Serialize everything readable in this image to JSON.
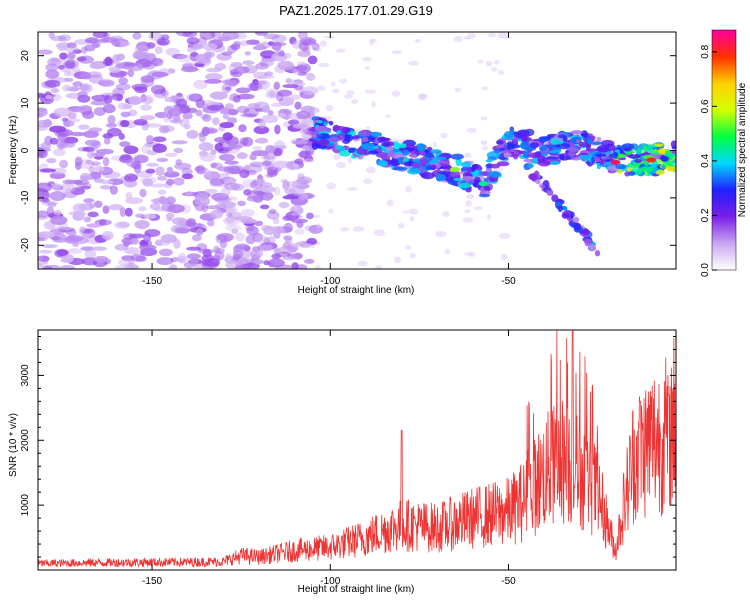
{
  "title": "PAZ1.2025.177.01.29.G19",
  "chart_data": [
    {
      "type": "heatmap",
      "xlabel": "Height of straight line (km)",
      "ylabel": "Frequency (Hz)",
      "xlim": [
        -182,
        -3
      ],
      "ylim": [
        -25,
        25
      ],
      "x_ticks": [
        -150,
        -100,
        -50
      ],
      "y_ticks": [
        -20,
        -10,
        0,
        10,
        20
      ],
      "colorbar": {
        "label": "Normalized spectral amplitude",
        "range": [
          0.0,
          0.88
        ],
        "ticks": [
          0.0,
          0.2,
          0.4,
          0.6,
          0.8
        ],
        "colors": [
          "#ffffff",
          "#c9a6f2",
          "#7a1ee6",
          "#2020ff",
          "#00d8ff",
          "#00ff40",
          "#d6ff00",
          "#ffd000",
          "#ff3000",
          "#ff00a0"
        ]
      },
      "ridge": {
        "description_points_x": [
          -105,
          -95,
          -85,
          -75,
          -65,
          -57,
          -50,
          -40,
          -30,
          -20,
          -10,
          -3
        ],
        "description_points_y": [
          4,
          2,
          0,
          -2,
          -4,
          -7,
          2,
          0,
          1,
          -2,
          -2,
          -1
        ],
        "peak_amplitude": 0.85
      }
    },
    {
      "type": "line",
      "xlabel": "Height of straight line (km)",
      "ylabel": "SNR (10 * v/v)",
      "xlim": [
        -182,
        -3
      ],
      "ylim": [
        0,
        3700
      ],
      "x_ticks": [
        -150,
        -100,
        -50
      ],
      "y_ticks": [
        1000,
        2000,
        3000
      ],
      "color": "#ee3333",
      "envelope_x": [
        -182,
        -170,
        -160,
        -150,
        -140,
        -130,
        -125,
        -120,
        -110,
        -100,
        -90,
        -80,
        -70,
        -60,
        -50,
        -45,
        -40,
        -35,
        -30,
        -25,
        -20,
        -18,
        -15,
        -10,
        -5,
        -3
      ],
      "envelope_y": [
        100,
        110,
        115,
        120,
        120,
        130,
        220,
        200,
        300,
        350,
        500,
        700,
        650,
        800,
        900,
        1100,
        1500,
        1700,
        1500,
        1200,
        300,
        900,
        1700,
        2000,
        2100,
        2400
      ],
      "peaks": [
        {
          "x": -32,
          "y": 3680
        },
        {
          "x": -38,
          "y": 3330
        },
        {
          "x": -80,
          "y": 2150
        },
        {
          "x": -13,
          "y": 2600
        },
        {
          "x": -5,
          "y": 2700
        }
      ]
    }
  ]
}
